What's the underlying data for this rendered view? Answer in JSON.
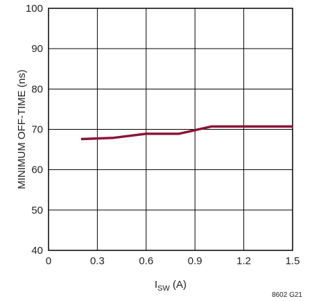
{
  "chart_data": {
    "type": "line",
    "title": "",
    "xlabel_main": "I",
    "xlabel_sub": "SW",
    "xlabel_unit": " (A)",
    "ylabel": "MINIMUM OFF-TIME (ns)",
    "xlim": [
      0,
      1.5
    ],
    "ylim": [
      40,
      100
    ],
    "xticks": [
      0,
      0.3,
      0.6,
      0.9,
      1.2,
      1.5
    ],
    "xtick_labels": [
      "0",
      "0.3",
      "0.6",
      "0.9",
      "1.2",
      "1.5"
    ],
    "yticks": [
      40,
      50,
      60,
      70,
      80,
      90,
      100
    ],
    "ytick_labels": [
      "40",
      "50",
      "60",
      "70",
      "80",
      "90",
      "100"
    ],
    "grid": true,
    "series": [
      {
        "color": "#8b1538",
        "x": [
          0.2,
          0.4,
          0.6,
          0.8,
          1.0,
          1.5
        ],
        "y": [
          67.6,
          67.9,
          68.9,
          68.9,
          70.7,
          70.7
        ]
      }
    ],
    "figure_id": "8602 G21"
  }
}
